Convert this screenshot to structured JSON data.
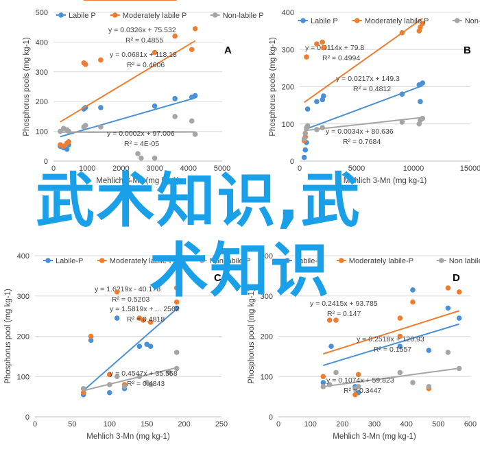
{
  "colors": {
    "labile": "#4a90d4",
    "moderate": "#ed7d31",
    "nonlabile": "#a5a5a5",
    "axis": "#bfbfbf",
    "grid": "#d9d9d9",
    "text": "#404040",
    "watermark": "#1aa0e8"
  },
  "watermark": {
    "line1": "武术知识,武",
    "line2": "术知识"
  },
  "chart_data": [
    {
      "type": "scatter",
      "panel": "A",
      "xlabel": "Mehlich 3-Mn (mg kg-1)",
      "ylabel": "Phosphorus pools (mg kg-1)",
      "xlim": [
        0,
        5000
      ],
      "ylim": [
        0,
        500
      ],
      "xticks": [
        0,
        1000,
        2000,
        3000,
        4000,
        5000
      ],
      "yticks": [
        0,
        100,
        200,
        300,
        400,
        500
      ],
      "series": [
        {
          "name": "Labile P",
          "color": "labile",
          "points": [
            [
              200,
              50
            ],
            [
              300,
              45
            ],
            [
              400,
              40
            ],
            [
              450,
              55
            ],
            [
              900,
              175
            ],
            [
              950,
              180
            ],
            [
              1400,
              180
            ],
            [
              3000,
              185
            ],
            [
              3600,
              210
            ],
            [
              4100,
              215
            ],
            [
              4200,
              220
            ]
          ],
          "trend": [
            200,
            4200
          ],
          "equation": "y = 0.0326x + 75.532",
          "r2": "R² = 0.4855"
        },
        {
          "name": "Moderately labile P",
          "color": "moderate",
          "points": [
            [
              200,
              55
            ],
            [
              300,
              50
            ],
            [
              400,
              60
            ],
            [
              450,
              65
            ],
            [
              900,
              330
            ],
            [
              950,
              325
            ],
            [
              1400,
              340
            ],
            [
              3000,
              365
            ],
            [
              3600,
              420
            ],
            [
              4100,
              375
            ],
            [
              4200,
              445
            ]
          ],
          "trend": [
            200,
            4200
          ],
          "equation": "y = 0.0681x + 118.18",
          "r2": "R² = 0.4606"
        },
        {
          "name": "Non-labile P",
          "color": "nonlabile",
          "points": [
            [
              200,
              100
            ],
            [
              300,
              110
            ],
            [
              400,
              105
            ],
            [
              450,
              100
            ],
            [
              900,
              115
            ],
            [
              950,
              120
            ],
            [
              1400,
              115
            ],
            [
              2500,
              25
            ],
            [
              2600,
              10
            ],
            [
              3000,
              10
            ],
            [
              3600,
              150
            ],
            [
              4100,
              135
            ],
            [
              4200,
              90
            ]
          ],
          "trend": [
            200,
            4200
          ],
          "equation": "y = 0.0002x + 97.006",
          "r2": "R² = 4E-05"
        }
      ]
    },
    {
      "type": "scatter",
      "panel": "B",
      "xlabel": "Mehlich 3-Mn (mg kg-1)",
      "ylabel": "Phosphorus pools (mg kg-1)",
      "xlim": [
        0,
        15000
      ],
      "ylim": [
        0,
        400
      ],
      "xticks": [
        0,
        5000,
        10000,
        15000
      ],
      "yticks": [
        0,
        100,
        200,
        300,
        400
      ],
      "series": [
        {
          "name": "Labile P",
          "color": "labile",
          "points": [
            [
              400,
              10
            ],
            [
              500,
              30
            ],
            [
              600,
              50
            ],
            [
              700,
              140
            ],
            [
              1500,
              160
            ],
            [
              2000,
              165
            ],
            [
              2100,
              175
            ],
            [
              9000,
              180
            ],
            [
              10500,
              205
            ],
            [
              10600,
              160
            ],
            [
              10800,
              210
            ]
          ],
          "trend": [
            400,
            10800
          ],
          "equation": "y = 0.0114x + 79.8",
          "r2": "R² = 0.4994"
        },
        {
          "name": "Moderately labile P",
          "color": "moderate",
          "points": [
            [
              400,
              55
            ],
            [
              500,
              65
            ],
            [
              600,
              280
            ],
            [
              1500,
              315
            ],
            [
              2000,
              320
            ],
            [
              2100,
              305
            ],
            [
              9000,
              345
            ],
            [
              10500,
              350
            ],
            [
              10600,
              360
            ],
            [
              10800,
              370
            ]
          ],
          "trend": [
            400,
            10800
          ],
          "equation": "y = 0.0217x + 149.3",
          "r2": "R² = 0.4812"
        },
        {
          "name": "Non-labile P",
          "color": "nonlabile",
          "points": [
            [
              400,
              60
            ],
            [
              500,
              75
            ],
            [
              600,
              90
            ],
            [
              700,
              95
            ],
            [
              1500,
              85
            ],
            [
              2000,
              90
            ],
            [
              9000,
              105
            ],
            [
              10500,
              100
            ],
            [
              10600,
              110
            ],
            [
              10800,
              115
            ]
          ],
          "trend": [
            400,
            10800
          ],
          "equation": "y = 0.0034x + 80.636",
          "r2": "R² = 0.7684"
        }
      ]
    },
    {
      "type": "scatter",
      "panel": "C",
      "xlabel": "Mehlich 3-Mn (mg kg-1)",
      "ylabel": "Phosphorus pool (mg kg-1)",
      "xlim": [
        0,
        250
      ],
      "ylim": [
        0,
        400
      ],
      "xticks": [
        0,
        50,
        100,
        150,
        200,
        250
      ],
      "yticks": [
        0,
        100,
        200,
        300,
        400
      ],
      "series": [
        {
          "name": "Labile-P",
          "color": "labile",
          "points": [
            [
              65,
              55
            ],
            [
              75,
              190
            ],
            [
              100,
              60
            ],
            [
              110,
              245
            ],
            [
              120,
              70
            ],
            [
              140,
              175
            ],
            [
              150,
              180
            ],
            [
              155,
              175
            ],
            [
              190,
              270
            ]
          ],
          "trend": [
            65,
            190
          ],
          "equation": "y = 1.6219x - 40.178",
          "r2": "R² = 0.5203"
        },
        {
          "name": "Moderately labile-P",
          "color": "moderate",
          "points": [
            [
              65,
              60
            ],
            [
              75,
              200
            ],
            [
              100,
              105
            ],
            [
              110,
              310
            ],
            [
              120,
              80
            ],
            [
              140,
              245
            ],
            [
              145,
              240
            ],
            [
              155,
              235
            ],
            [
              190,
              285
            ],
            [
              190,
              320
            ]
          ],
          "trend": [
            65,
            190
          ],
          "equation": "y = 1.5819x + ... 2562",
          "r2": "R² = 0.4818"
        },
        {
          "name": "Non labile-P",
          "color": "nonlabile",
          "points": [
            [
              65,
              70
            ],
            [
              100,
              80
            ],
            [
              110,
              100
            ],
            [
              120,
              75
            ],
            [
              140,
              100
            ],
            [
              150,
              85
            ],
            [
              155,
              80
            ],
            [
              180,
              110
            ],
            [
              190,
              160
            ],
            [
              190,
              120
            ]
          ],
          "trend": [
            65,
            190
          ],
          "equation": "y = 0.4547x + 35.558",
          "r2": "R² = 0.4843"
        }
      ]
    },
    {
      "type": "scatter",
      "panel": "D",
      "xlabel": "Mehlich 3-Mn (mg kg-1)",
      "ylabel": "Phosphorus pool (mg kg-1)",
      "xlim": [
        0,
        600
      ],
      "ylim": [
        0,
        400
      ],
      "xticks": [
        0,
        100,
        200,
        300,
        400,
        500,
        600
      ],
      "yticks": [
        0,
        100,
        200,
        300,
        400
      ],
      "series": [
        {
          "name": "Labile-P",
          "color": "labile",
          "points": [
            [
              140,
              85
            ],
            [
              165,
              175
            ],
            [
              240,
              75
            ],
            [
              250,
              60
            ],
            [
              380,
              175
            ],
            [
              420,
              315
            ],
            [
              470,
              165
            ],
            [
              530,
              270
            ],
            [
              565,
              245
            ]
          ],
          "trend": [
            140,
            565
          ],
          "equation": "y = 0.2415x + 93.785",
          "r2": "R² = 0.147"
        },
        {
          "name": "Moderately labile-P",
          "color": "moderate",
          "points": [
            [
              140,
              100
            ],
            [
              160,
              240
            ],
            [
              180,
              240
            ],
            [
              240,
              55
            ],
            [
              250,
              105
            ],
            [
              380,
              200
            ],
            [
              380,
              245
            ],
            [
              420,
              285
            ],
            [
              470,
              70
            ],
            [
              530,
              320
            ],
            [
              565,
              310
            ]
          ],
          "trend": [
            140,
            565
          ],
          "equation": "y = 0.2518x + 120.93",
          "r2": "R² = 0.1557"
        },
        {
          "name": "Non labile-P",
          "color": "nonlabile",
          "points": [
            [
              140,
              75
            ],
            [
              160,
              80
            ],
            [
              180,
              110
            ],
            [
              240,
              70
            ],
            [
              250,
              75
            ],
            [
              380,
              110
            ],
            [
              420,
              85
            ],
            [
              470,
              75
            ],
            [
              530,
              160
            ],
            [
              565,
              120
            ]
          ],
          "trend": [
            140,
            565
          ],
          "equation": "y = 0.1074x + 59.823",
          "r2": "R² = 0.3447"
        }
      ]
    }
  ]
}
